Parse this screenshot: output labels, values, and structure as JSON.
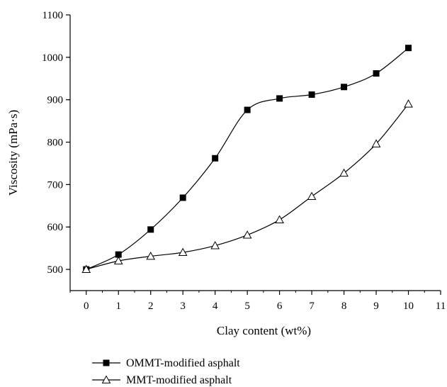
{
  "chart_data": {
    "type": "line",
    "title": "",
    "xlabel": "Clay content (wt%)",
    "ylabel": "Viscosity (mPa·s)",
    "xlim": [
      -0.5,
      11
    ],
    "ylim": [
      450,
      1100
    ],
    "xticks": [
      0,
      1,
      2,
      3,
      4,
      5,
      6,
      7,
      8,
      9,
      10,
      11
    ],
    "xtick_labels": [
      "0",
      "1",
      "2",
      "3",
      "4",
      "5",
      "6",
      "7",
      "8",
      "9",
      "10",
      "11"
    ],
    "yticks": [
      500,
      600,
      700,
      800,
      900,
      1000,
      1100
    ],
    "ytick_labels": [
      "500",
      "600",
      "700",
      "800",
      "900",
      "1000",
      "1100"
    ],
    "grid": false,
    "legend_position": "bottom-left",
    "x": [
      0,
      1,
      2,
      3,
      4,
      5,
      6,
      7,
      8,
      9,
      10
    ],
    "series": [
      {
        "name": "OMMT-modified asphalt",
        "marker": "filled-square",
        "color": "#000000",
        "values": [
          500,
          535,
          594,
          669,
          762,
          876,
          903,
          912,
          930,
          962,
          1022
        ]
      },
      {
        "name": "MMT-modified asphalt",
        "marker": "open-triangle",
        "color": "#000000",
        "values": [
          500,
          520,
          531,
          540,
          556,
          581,
          617,
          672,
          727,
          796,
          890
        ]
      }
    ]
  }
}
